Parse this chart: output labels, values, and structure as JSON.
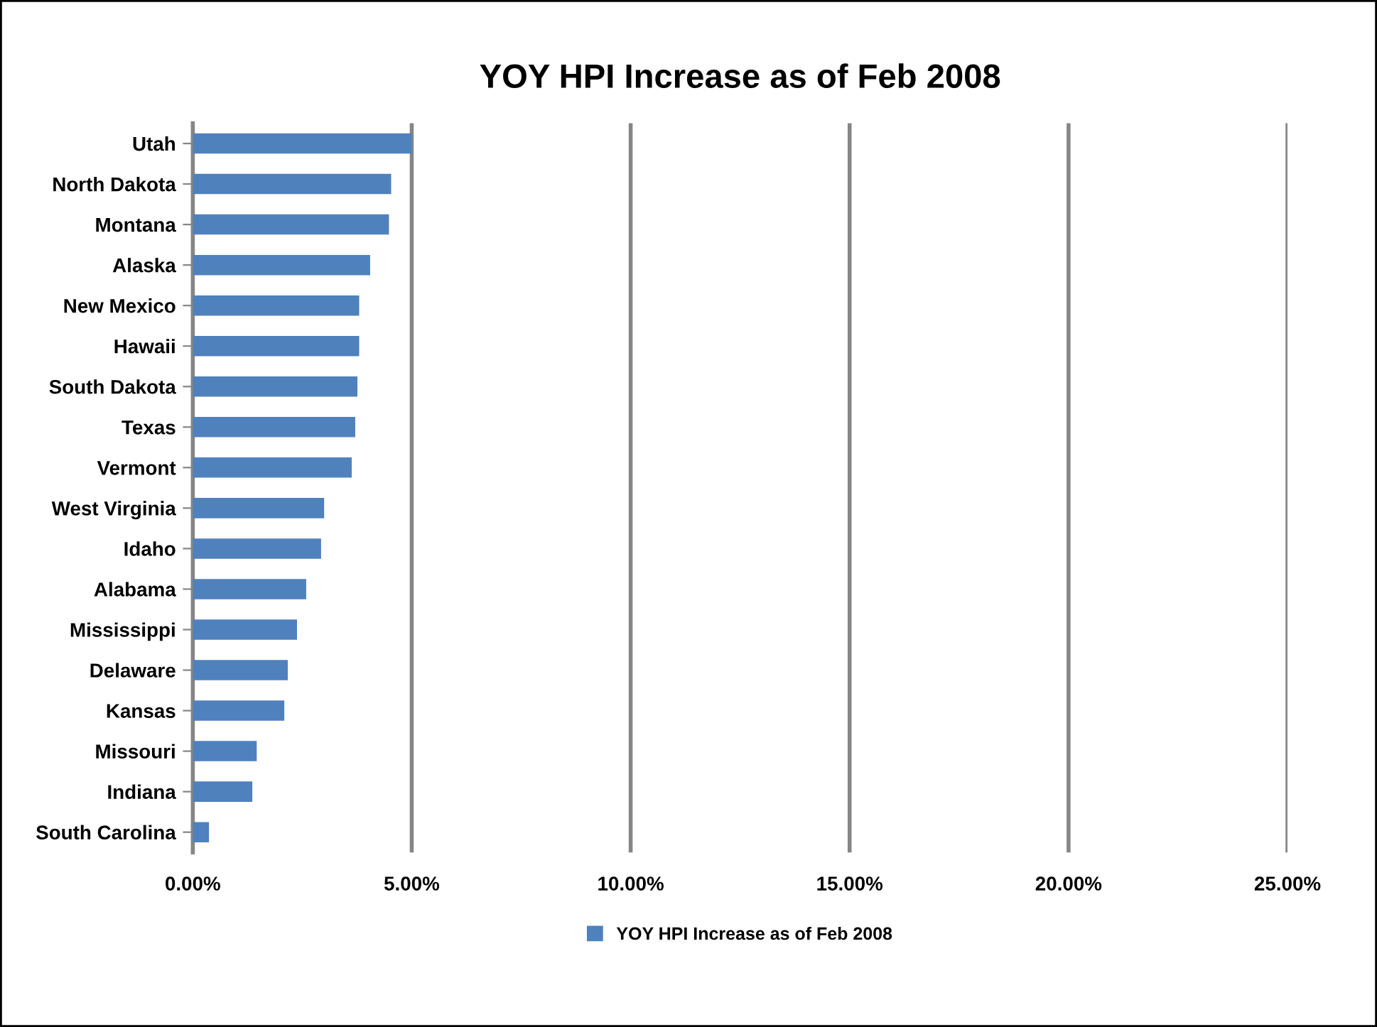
{
  "chart_data": {
    "type": "bar",
    "orientation": "horizontal",
    "title": "YOY HPI Increase as of Feb 2008",
    "categories": [
      "Utah",
      "North Dakota",
      "Montana",
      "Alaska",
      "New Mexico",
      "Hawaii",
      "South Dakota",
      "Texas",
      "Vermont",
      "West Virginia",
      "Idaho",
      "Alabama",
      "Mississippi",
      "Delaware",
      "Kansas",
      "Missouri",
      "Indiana",
      "South Carolina"
    ],
    "series": [
      {
        "name": "YOY HPI Increase as of Feb 2008",
        "color": "#4f81bd",
        "values": [
          5.0,
          4.53,
          4.48,
          4.05,
          3.8,
          3.8,
          3.76,
          3.71,
          3.63,
          3.0,
          2.93,
          2.59,
          2.38,
          2.17,
          2.09,
          1.46,
          1.36,
          0.37
        ]
      }
    ],
    "xlim": [
      0,
      25
    ],
    "xticks": [
      {
        "value": 0,
        "label": "0.00%"
      },
      {
        "value": 5,
        "label": "5.00%"
      },
      {
        "value": 10,
        "label": "10.00%"
      },
      {
        "value": 15,
        "label": "15.00%"
      },
      {
        "value": 20,
        "label": "20.00%"
      },
      {
        "value": 25,
        "label": "25.00%"
      }
    ],
    "grid": "x",
    "legend": "bottom"
  }
}
